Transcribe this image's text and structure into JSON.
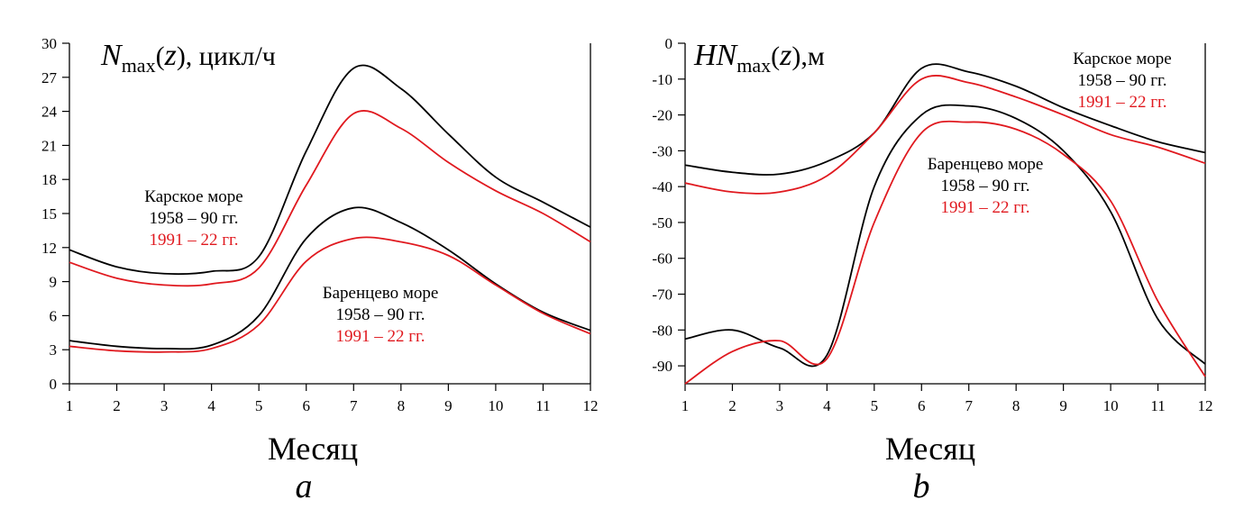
{
  "chart_data": [
    {
      "type": "line",
      "panel": "a",
      "ylabel": {
        "prefix": "N",
        "sub": "max",
        "mid": "(",
        "var": "z",
        "suffix": "), цикл/ч"
      },
      "xlabel": "Месяц",
      "x": [
        1,
        2,
        3,
        4,
        5,
        6,
        7,
        8,
        9,
        10,
        11,
        12
      ],
      "xlim": [
        1,
        12
      ],
      "ylim": [
        0,
        30
      ],
      "yticks": [
        0,
        3,
        6,
        9,
        12,
        15,
        18,
        21,
        24,
        27,
        30
      ],
      "grid": false,
      "series": [
        {
          "color": "#000000",
          "values": [
            11.8,
            10.3,
            9.7,
            9.9,
            11.2,
            20.5,
            27.8,
            26.0,
            22.0,
            18.2,
            16.0,
            13.8
          ]
        },
        {
          "color": "#e0191f",
          "values": [
            10.7,
            9.3,
            8.7,
            8.8,
            10.2,
            17.5,
            23.8,
            22.5,
            19.5,
            17.0,
            15.0,
            12.5
          ]
        },
        {
          "color": "#000000",
          "values": [
            3.8,
            3.3,
            3.1,
            3.4,
            6.0,
            12.8,
            15.5,
            14.2,
            11.8,
            8.8,
            6.3,
            4.7
          ]
        },
        {
          "color": "#e0191f",
          "values": [
            3.3,
            2.9,
            2.8,
            3.1,
            5.2,
            10.8,
            12.8,
            12.5,
            11.3,
            8.7,
            6.2,
            4.4
          ]
        }
      ],
      "annotations": [
        {
          "lines": [
            {
              "text": "Карское море",
              "color": "#000000"
            },
            {
              "text": "1958 – 90 гг.",
              "color": "#000000"
            },
            {
              "text": "1991 – 22 гг.",
              "color": "#e0191f"
            }
          ]
        },
        {
          "lines": [
            {
              "text": "Баренцево море",
              "color": "#000000"
            },
            {
              "text": "1958 – 90 гг.",
              "color": "#000000"
            },
            {
              "text": "1991 – 22 гг.",
              "color": "#e0191f"
            }
          ]
        }
      ]
    },
    {
      "type": "line",
      "panel": "b",
      "ylabel": {
        "prefix": "HN",
        "sub": "max",
        "mid": "(",
        "var": "z",
        "suffix": "),м"
      },
      "xlabel": "Месяц",
      "x": [
        1,
        2,
        3,
        4,
        5,
        6,
        7,
        8,
        9,
        10,
        11,
        12
      ],
      "xlim": [
        1,
        12
      ],
      "ylim": [
        -95,
        0
      ],
      "yticks": [
        -90,
        -80,
        -70,
        -60,
        -50,
        -40,
        -30,
        -20,
        -10,
        0
      ],
      "grid": false,
      "series": [
        {
          "color": "#000000",
          "values": [
            -34,
            -36,
            -36.5,
            -33,
            -25,
            -7,
            -8,
            -12,
            -18,
            -23,
            -27.5,
            -30.5
          ]
        },
        {
          "color": "#e0191f",
          "values": [
            -39,
            -41.5,
            -41.5,
            -37,
            -25,
            -10,
            -11,
            -15,
            -20,
            -25.5,
            -29,
            -33.5
          ]
        },
        {
          "color": "#000000",
          "values": [
            -82.5,
            -80,
            -85,
            -87,
            -40,
            -20,
            -17.5,
            -21,
            -30,
            -47,
            -77,
            -89.5
          ]
        },
        {
          "color": "#e0191f",
          "values": [
            -95,
            -86,
            -83,
            -88,
            -50,
            -25,
            -22,
            -24,
            -31,
            -44,
            -72,
            -93
          ]
        }
      ],
      "annotations": [
        {
          "lines": [
            {
              "text": "Карское море",
              "color": "#000000"
            },
            {
              "text": "1958 – 90 гг.",
              "color": "#000000"
            },
            {
              "text": "1991 – 22 гг.",
              "color": "#e0191f"
            }
          ]
        },
        {
          "lines": [
            {
              "text": "Баренцево море",
              "color": "#000000"
            },
            {
              "text": "1958 – 90 гг.",
              "color": "#000000"
            },
            {
              "text": "1991 – 22 гг.",
              "color": "#e0191f"
            }
          ]
        }
      ]
    }
  ]
}
